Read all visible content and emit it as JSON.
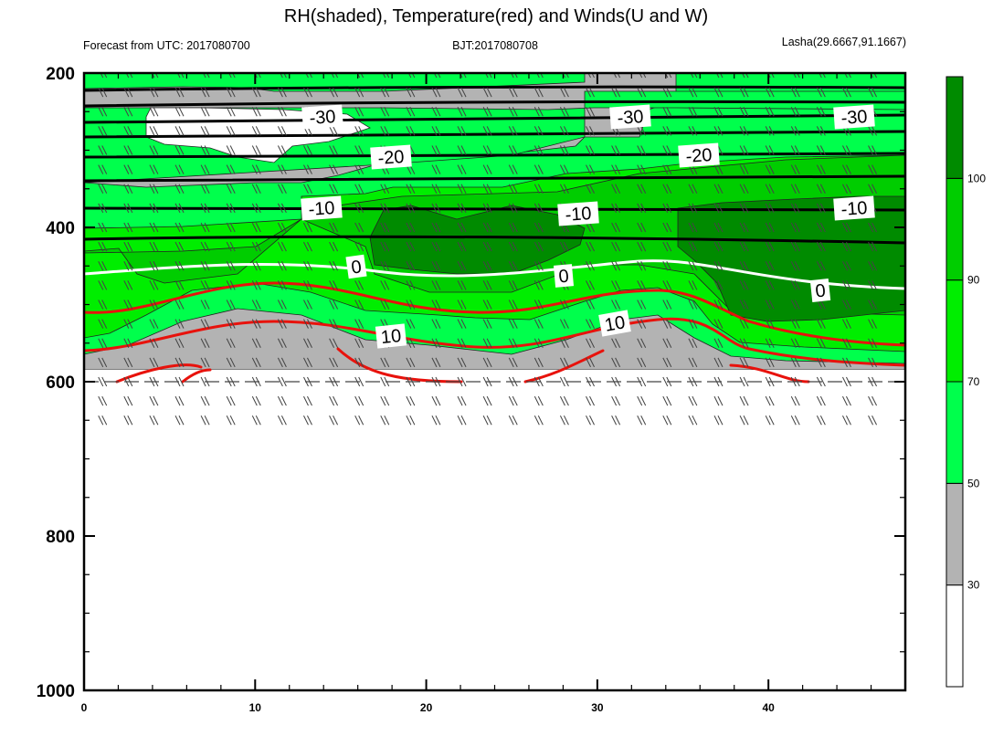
{
  "header": {
    "title": "RH(shaded), Temperature(red) and Winds(U and W)",
    "forecast_label": "Forecast from UTC: 2017080700",
    "bjt_label": "BJT:2017080708",
    "location_label": "Lasha(29.6667,91.1667)"
  },
  "chart_data": {
    "type": "heatmap",
    "title": "RH(shaded), Temperature(red) and Winds(U and W)",
    "xlim": [
      0,
      48
    ],
    "ylim": [
      1000,
      200
    ],
    "y_inverted": true,
    "x_ticks": [
      "0",
      "10",
      "20",
      "30",
      "40"
    ],
    "x_tick_values": [
      0,
      10,
      20,
      30,
      40
    ],
    "y_ticks": [
      "200",
      "400",
      "600",
      "800",
      "1000"
    ],
    "y_tick_values": [
      200,
      400,
      600,
      800,
      1000
    ],
    "colorbar": {
      "colors": [
        "#ffffff",
        "#b3b3b3",
        "#00ff4c",
        "#00ee00",
        "#00cd00",
        "#008b00"
      ],
      "tick_labels": [
        "30",
        "50",
        "70",
        "90",
        "100"
      ],
      "tick_values": [
        30,
        50,
        70,
        90,
        100
      ]
    },
    "surface_pressure_approx": 650,
    "temperature_contour_labels": [
      "-30",
      "-30",
      "-30",
      "-20",
      "-20",
      "-10",
      "-10",
      "-10",
      "0",
      "0",
      "0",
      "10",
      "10"
    ],
    "isotherm_levels": [
      -30,
      -20,
      -10,
      0,
      10
    ],
    "colors": {
      "isotherm_black": "#000000",
      "isotherm_zero": "#ffffff",
      "isotherm_warm": "#e8120c",
      "wind_barb": "#444444"
    }
  }
}
